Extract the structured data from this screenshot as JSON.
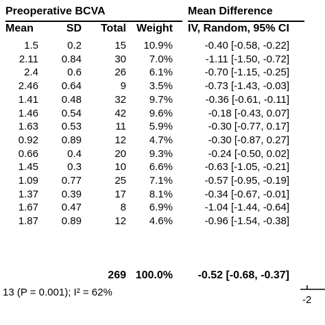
{
  "table": {
    "group_title_left": "Preoperative BCVA",
    "group_title_right": "Mean Difference",
    "headers": {
      "mean": "Mean",
      "sd": "SD",
      "total": "Total",
      "weight": "Weight",
      "md": "IV, Random, 95% CI"
    },
    "rows": [
      {
        "mean": "1.5",
        "sd": "0.2",
        "total": "15",
        "weight": "10.9%",
        "md": "-0.40 [-0.58, -0.22]"
      },
      {
        "mean": "2.11",
        "sd": "0.84",
        "total": "30",
        "weight": "7.0%",
        "md": "-1.11 [-1.50, -0.72]"
      },
      {
        "mean": "2.4",
        "sd": "0.6",
        "total": "26",
        "weight": "6.1%",
        "md": "-0.70 [-1.15, -0.25]"
      },
      {
        "mean": "2.46",
        "sd": "0.64",
        "total": "9",
        "weight": "3.5%",
        "md": "-0.73 [-1.43, -0.03]"
      },
      {
        "mean": "1.41",
        "sd": "0.48",
        "total": "32",
        "weight": "9.7%",
        "md": "-0.36 [-0.61, -0.11]"
      },
      {
        "mean": "1.46",
        "sd": "0.54",
        "total": "42",
        "weight": "9.6%",
        "md": "-0.18 [-0.43, 0.07]"
      },
      {
        "mean": "1.63",
        "sd": "0.53",
        "total": "11",
        "weight": "5.9%",
        "md": "-0.30 [-0.77, 0.17]"
      },
      {
        "mean": "0.92",
        "sd": "0.89",
        "total": "12",
        "weight": "4.7%",
        "md": "-0.30 [-0.87, 0.27]"
      },
      {
        "mean": "0.66",
        "sd": "0.4",
        "total": "20",
        "weight": "9.3%",
        "md": "-0.24 [-0.50, 0.02]"
      },
      {
        "mean": "1.45",
        "sd": "0.3",
        "total": "10",
        "weight": "6.6%",
        "md": "-0.63 [-1.05, -0.21]"
      },
      {
        "mean": "1.09",
        "sd": "0.77",
        "total": "25",
        "weight": "7.1%",
        "md": "-0.57 [-0.95, -0.19]"
      },
      {
        "mean": "1.37",
        "sd": "0.39",
        "total": "17",
        "weight": "8.1%",
        "md": "-0.34 [-0.67, -0.01]"
      },
      {
        "mean": "1.67",
        "sd": "0.47",
        "total": "8",
        "weight": "6.9%",
        "md": "-1.04 [-1.44, -0.64]"
      },
      {
        "mean": "1.87",
        "sd": "0.89",
        "total": "12",
        "weight": "4.6%",
        "md": "-0.96 [-1.54, -0.38]"
      }
    ],
    "total_row": {
      "total": "269",
      "weight": "100.0%",
      "md": "-0.52 [-0.68, -0.37]"
    },
    "heterogeneity": "13 (P = 0.001); I² = 62%",
    "axis_tick_label": "-2"
  },
  "chart_data": {
    "type": "table",
    "columns": [
      "Mean",
      "SD",
      "Total",
      "Weight",
      "IV, Random, 95% CI"
    ],
    "rows": [
      [
        1.5,
        0.2,
        15,
        "10.9%",
        "-0.40 [-0.58, -0.22]"
      ],
      [
        2.11,
        0.84,
        30,
        "7.0%",
        "-1.11 [-1.50, -0.72]"
      ],
      [
        2.4,
        0.6,
        26,
        "6.1%",
        "-0.70 [-1.15, -0.25]"
      ],
      [
        2.46,
        0.64,
        9,
        "3.5%",
        "-0.73 [-1.43, -0.03]"
      ],
      [
        1.41,
        0.48,
        32,
        "9.7%",
        "-0.36 [-0.61, -0.11]"
      ],
      [
        1.46,
        0.54,
        42,
        "9.6%",
        "-0.18 [-0.43, 0.07]"
      ],
      [
        1.63,
        0.53,
        11,
        "5.9%",
        "-0.30 [-0.77, 0.17]"
      ],
      [
        0.92,
        0.89,
        12,
        "4.7%",
        "-0.30 [-0.87, 0.27]"
      ],
      [
        0.66,
        0.4,
        20,
        "9.3%",
        "-0.24 [-0.50, 0.02]"
      ],
      [
        1.45,
        0.3,
        10,
        "6.6%",
        "-0.63 [-1.05, -0.21]"
      ],
      [
        1.09,
        0.77,
        25,
        "7.1%",
        "-0.57 [-0.95, -0.19]"
      ],
      [
        1.37,
        0.39,
        17,
        "8.1%",
        "-0.34 [-0.67, -0.01]"
      ],
      [
        1.67,
        0.47,
        8,
        "6.9%",
        "-1.04 [-1.44, -0.64]"
      ],
      [
        1.87,
        0.89,
        12,
        "4.6%",
        "-0.96 [-1.54, -0.38]"
      ]
    ]
  }
}
